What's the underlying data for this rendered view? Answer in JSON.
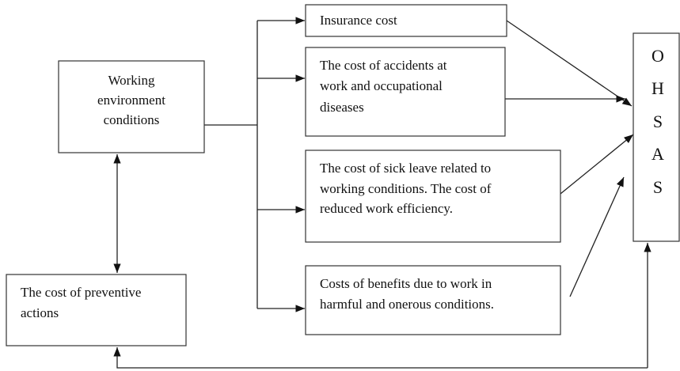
{
  "nodes": [
    {
      "id": "wec",
      "lines": [
        "Working",
        "environment",
        "conditions"
      ]
    },
    {
      "id": "ins",
      "lines": [
        "Insurance cost"
      ]
    },
    {
      "id": "acc",
      "lines": [
        "The cost of accidents at",
        "work and occupational",
        "diseases"
      ]
    },
    {
      "id": "sick",
      "lines": [
        "The cost of sick leave related to",
        "working conditions. The cost of",
        "reduced work efficiency."
      ]
    },
    {
      "id": "ben",
      "lines": [
        "Costs of benefits due to work in",
        "harmful and onerous conditions."
      ]
    },
    {
      "id": "prev",
      "lines": [
        "The cost of preventive",
        "actions"
      ]
    },
    {
      "id": "ohsas",
      "lines": [
        "O",
        "H",
        "S",
        "A",
        "S"
      ]
    }
  ]
}
